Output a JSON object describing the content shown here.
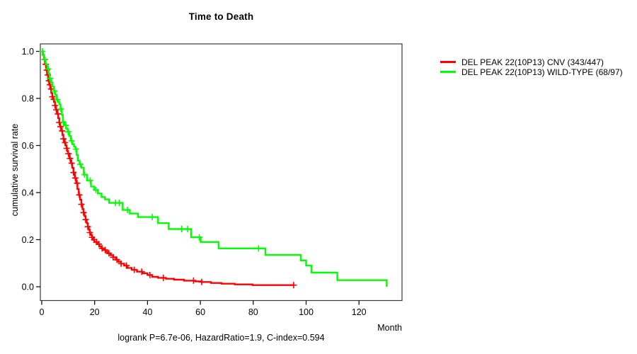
{
  "figure": {
    "title": "Time to Death",
    "x_axis_title": "Month",
    "y_axis_title": "cumulative survival rate",
    "annotation": "logrank P=6.7e-06, HazardRatio=1.9, C-index=0.594"
  },
  "chart_data": {
    "type": "line",
    "subtype": "kaplan-meier-step-curve",
    "title": "Time to Death",
    "xlabel": "Month",
    "ylabel": "cumulative survival rate",
    "xlim": [
      0,
      136
    ],
    "ylim": [
      0,
      1.0
    ],
    "grid": false,
    "legend_position": "right-outside-top",
    "annotation": "logrank P=6.7e-06, HazardRatio=1.9, C-index=0.594",
    "stats": {
      "logrank_p": "6.7e-06",
      "hazard_ratio": "1.9",
      "c_index": "0.594"
    },
    "xticks": {
      "values": [
        0,
        20,
        40,
        60,
        80,
        100,
        120
      ],
      "labels": [
        "0",
        "20",
        "40",
        "60",
        "80",
        "100",
        "120"
      ]
    },
    "yticks": {
      "values": [
        0.0,
        0.2,
        0.4,
        0.6,
        0.8,
        1.0
      ],
      "labels": [
        "0.0",
        "0.2",
        "0.4",
        "0.6",
        "0.8",
        "1.0"
      ]
    },
    "series": [
      {
        "id": "cnv",
        "name": "DEL PEAK 22(10P13) CNV (343/447)",
        "color": "#ff0000",
        "events": "343/447",
        "steps": [
          [
            0,
            1.0
          ],
          [
            0.4,
            0.985
          ],
          [
            0.8,
            0.965
          ],
          [
            1.2,
            0.945
          ],
          [
            1.6,
            0.92
          ],
          [
            2.0,
            0.9
          ],
          [
            2.4,
            0.875
          ],
          [
            2.8,
            0.858
          ],
          [
            3.2,
            0.84
          ],
          [
            3.6,
            0.823
          ],
          [
            4.0,
            0.807
          ],
          [
            4.3,
            0.796
          ],
          [
            4.7,
            0.785
          ],
          [
            5.0,
            0.77
          ],
          [
            5.4,
            0.752
          ],
          [
            5.8,
            0.734
          ],
          [
            6.2,
            0.716
          ],
          [
            6.6,
            0.698
          ],
          [
            7.0,
            0.68
          ],
          [
            7.4,
            0.662
          ],
          [
            7.8,
            0.645
          ],
          [
            8.2,
            0.628
          ],
          [
            8.6,
            0.612
          ],
          [
            9.0,
            0.6
          ],
          [
            9.4,
            0.588
          ],
          [
            9.7,
            0.576
          ],
          [
            10.0,
            0.565
          ],
          [
            10.5,
            0.545
          ],
          [
            11.0,
            0.525
          ],
          [
            11.5,
            0.505
          ],
          [
            12.0,
            0.485
          ],
          [
            12.5,
            0.462
          ],
          [
            13.0,
            0.44
          ],
          [
            13.5,
            0.415
          ],
          [
            14.0,
            0.39
          ],
          [
            14.5,
            0.37
          ],
          [
            15.0,
            0.35
          ],
          [
            15.4,
            0.33
          ],
          [
            15.8,
            0.315
          ],
          [
            16.2,
            0.3
          ],
          [
            16.6,
            0.285
          ],
          [
            17.0,
            0.27
          ],
          [
            17.4,
            0.255
          ],
          [
            17.8,
            0.242
          ],
          [
            18.2,
            0.23
          ],
          [
            18.6,
            0.22
          ],
          [
            19.0,
            0.21
          ],
          [
            19.4,
            0.2
          ],
          [
            19.9,
            0.19
          ],
          [
            21.0,
            0.181
          ],
          [
            21.8,
            0.171
          ],
          [
            22.6,
            0.163
          ],
          [
            23.4,
            0.156
          ],
          [
            24.2,
            0.149
          ],
          [
            25.0,
            0.142
          ],
          [
            26.0,
            0.134
          ],
          [
            27.0,
            0.125
          ],
          [
            28.0,
            0.115
          ],
          [
            29.0,
            0.106
          ],
          [
            30.0,
            0.098
          ],
          [
            31.2,
            0.09
          ],
          [
            32.4,
            0.08
          ],
          [
            34.0,
            0.072
          ],
          [
            36.0,
            0.064
          ],
          [
            38.0,
            0.057
          ],
          [
            40.0,
            0.05
          ],
          [
            41.8,
            0.042
          ],
          [
            44.0,
            0.038
          ],
          [
            47.0,
            0.034
          ],
          [
            50.0,
            0.03
          ],
          [
            53.8,
            0.026
          ],
          [
            58.0,
            0.023
          ],
          [
            60.5,
            0.02
          ],
          [
            64.0,
            0.016
          ],
          [
            68.0,
            0.013
          ],
          [
            73.0,
            0.01
          ],
          [
            79.7,
            0.007
          ],
          [
            95.5,
            0.007
          ]
        ],
        "censor_times": [
          1.1,
          1.5,
          1.9,
          2.3,
          2.7,
          3.1,
          3.5,
          4.0,
          4.5,
          5.0,
          5.5,
          6.1,
          6.6,
          7.1,
          7.7,
          8.2,
          8.8,
          9.4,
          10.1,
          10.7,
          11.3,
          12.0,
          12.7,
          13.4,
          14.2,
          15.0,
          15.8,
          16.6,
          17.4,
          18.2,
          19.0,
          19.8,
          20.7,
          21.6,
          22.8,
          24.0,
          25.4,
          27.0,
          28.4,
          30.0,
          32.0,
          35.0,
          37.8,
          40.9,
          46.0,
          57.4,
          60.5,
          95.3
        ]
      },
      {
        "id": "wild-type",
        "name": "DEL PEAK 22(10P13) WILD-TYPE (68/97)",
        "color": "#00ff00",
        "events": "68/97",
        "steps": [
          [
            0,
            1.0
          ],
          [
            0.3,
            0.985
          ],
          [
            0.9,
            0.965
          ],
          [
            1.5,
            0.945
          ],
          [
            2.1,
            0.925
          ],
          [
            2.6,
            0.905
          ],
          [
            3.0,
            0.885
          ],
          [
            3.5,
            0.868
          ],
          [
            4.0,
            0.85
          ],
          [
            4.6,
            0.832
          ],
          [
            5.1,
            0.815
          ],
          [
            5.6,
            0.795
          ],
          [
            6.1,
            0.785
          ],
          [
            6.6,
            0.775
          ],
          [
            7.1,
            0.755
          ],
          [
            7.6,
            0.73
          ],
          [
            8.0,
            0.7
          ],
          [
            8.6,
            0.685
          ],
          [
            9.2,
            0.672
          ],
          [
            9.8,
            0.658
          ],
          [
            10.4,
            0.64
          ],
          [
            11.0,
            0.62
          ],
          [
            11.6,
            0.605
          ],
          [
            12.2,
            0.595
          ],
          [
            12.8,
            0.585
          ],
          [
            13.2,
            0.56
          ],
          [
            13.6,
            0.536
          ],
          [
            14.3,
            0.52
          ],
          [
            15.0,
            0.506
          ],
          [
            15.9,
            0.476
          ],
          [
            17.2,
            0.451
          ],
          [
            18.6,
            0.426
          ],
          [
            19.9,
            0.411
          ],
          [
            21.2,
            0.396
          ],
          [
            22.6,
            0.381
          ],
          [
            23.9,
            0.371
          ],
          [
            25.5,
            0.356
          ],
          [
            30.6,
            0.326
          ],
          [
            33.3,
            0.311
          ],
          [
            36.4,
            0.296
          ],
          [
            44.0,
            0.27
          ],
          [
            48.0,
            0.245
          ],
          [
            56.5,
            0.21
          ],
          [
            60.1,
            0.19
          ],
          [
            66.9,
            0.163
          ],
          [
            84.6,
            0.135
          ],
          [
            98.0,
            0.112
          ],
          [
            100.0,
            0.09
          ],
          [
            102.0,
            0.06
          ],
          [
            111.8,
            0.028
          ],
          [
            130.5,
            0.0
          ]
        ],
        "censor_times": [
          0.25,
          1.2,
          2.4,
          3.1,
          4.8,
          5.9,
          7.2,
          8.1,
          9.1,
          10.0,
          11.3,
          12.9,
          14.6,
          16.2,
          18.3,
          20.5,
          27.9,
          29.3,
          32.4,
          41.8,
          52.9,
          55.2,
          59.6,
          82.0
        ]
      }
    ]
  }
}
